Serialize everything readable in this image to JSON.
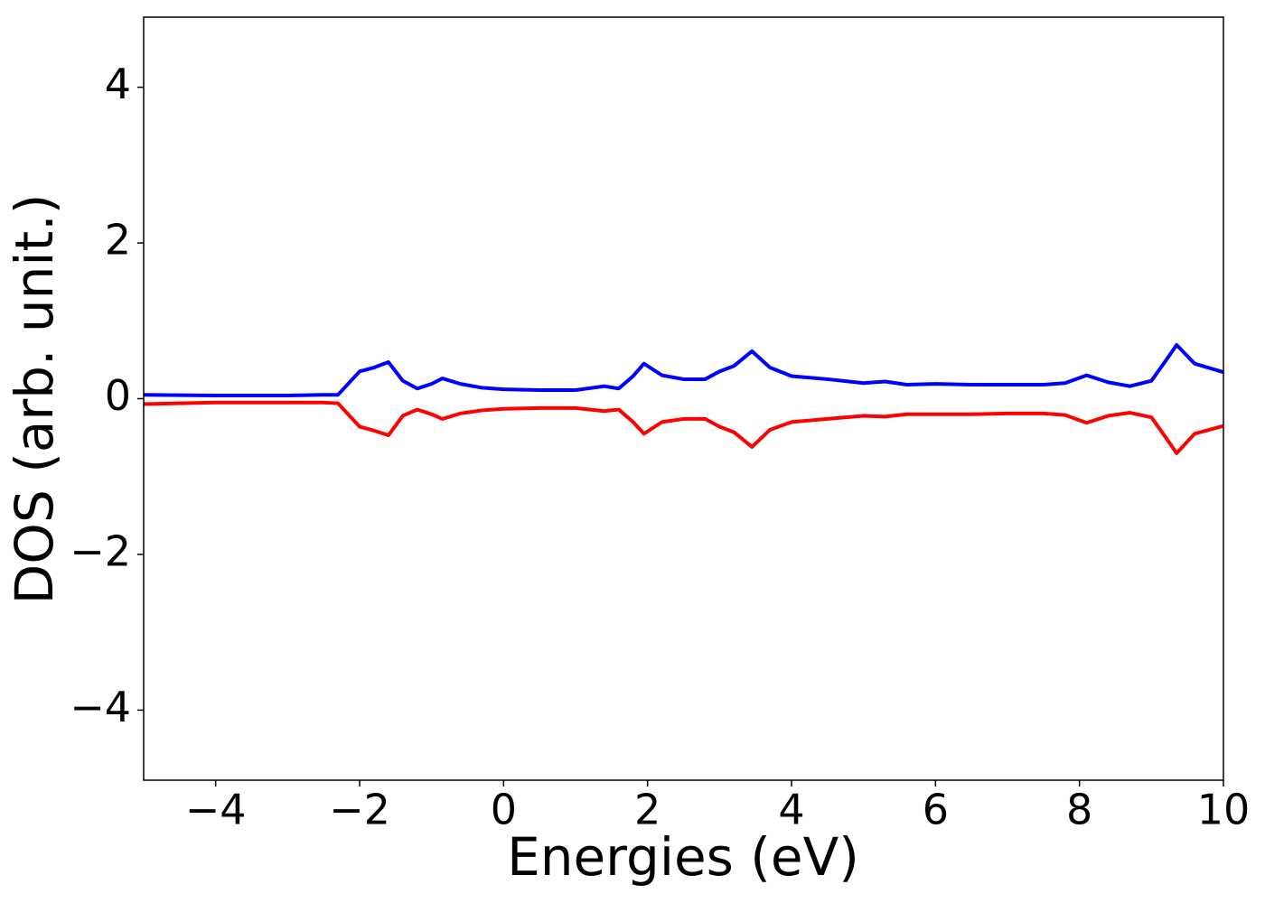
{
  "chart_data": {
    "type": "line",
    "xlabel": "Energies (eV)",
    "ylabel": "DOS (arb. unit.)",
    "x": [
      -5,
      -4,
      -3,
      -2.5,
      -2.3,
      -2.0,
      -1.8,
      -1.6,
      -1.4,
      -1.2,
      -1.0,
      -0.85,
      -0.6,
      -0.3,
      0,
      0.5,
      1.0,
      1.4,
      1.6,
      1.8,
      1.95,
      2.2,
      2.5,
      2.8,
      3.0,
      3.2,
      3.45,
      3.7,
      4.0,
      4.5,
      5.0,
      5.3,
      5.6,
      6.0,
      6.5,
      7.0,
      7.5,
      7.8,
      8.1,
      8.4,
      8.7,
      9.0,
      9.2,
      9.35,
      9.6,
      10
    ],
    "series": [
      {
        "color": "#0000ff",
        "values": [
          0.05,
          0.04,
          0.04,
          0.05,
          0.05,
          0.35,
          0.4,
          0.47,
          0.23,
          0.13,
          0.19,
          0.26,
          0.19,
          0.14,
          0.12,
          0.11,
          0.11,
          0.16,
          0.13,
          0.29,
          0.45,
          0.3,
          0.25,
          0.25,
          0.35,
          0.42,
          0.61,
          0.4,
          0.29,
          0.25,
          0.2,
          0.22,
          0.18,
          0.19,
          0.18,
          0.18,
          0.18,
          0.2,
          0.3,
          0.21,
          0.16,
          0.23,
          0.49,
          0.69,
          0.45,
          0.34
        ]
      },
      {
        "color": "#ff0000",
        "values": [
          -0.07,
          -0.05,
          -0.05,
          -0.05,
          -0.06,
          -0.36,
          -0.41,
          -0.47,
          -0.22,
          -0.14,
          -0.2,
          -0.26,
          -0.19,
          -0.15,
          -0.13,
          -0.12,
          -0.12,
          -0.16,
          -0.14,
          -0.3,
          -0.45,
          -0.3,
          -0.26,
          -0.26,
          -0.36,
          -0.43,
          -0.62,
          -0.4,
          -0.3,
          -0.26,
          -0.22,
          -0.23,
          -0.2,
          -0.2,
          -0.2,
          -0.19,
          -0.19,
          -0.21,
          -0.31,
          -0.22,
          -0.18,
          -0.24,
          -0.5,
          -0.7,
          -0.45,
          -0.35
        ]
      }
    ],
    "xlim": [
      -5,
      10
    ],
    "ylim": [
      -4.9,
      4.9
    ],
    "xticks": [
      {
        "value": -4,
        "label": "−4"
      },
      {
        "value": -2,
        "label": "−2"
      },
      0,
      2,
      4,
      6,
      8,
      10
    ],
    "yticks": [
      {
        "value": -4,
        "label": "−4"
      },
      {
        "value": -2,
        "label": "−2"
      },
      0,
      2,
      4
    ]
  }
}
